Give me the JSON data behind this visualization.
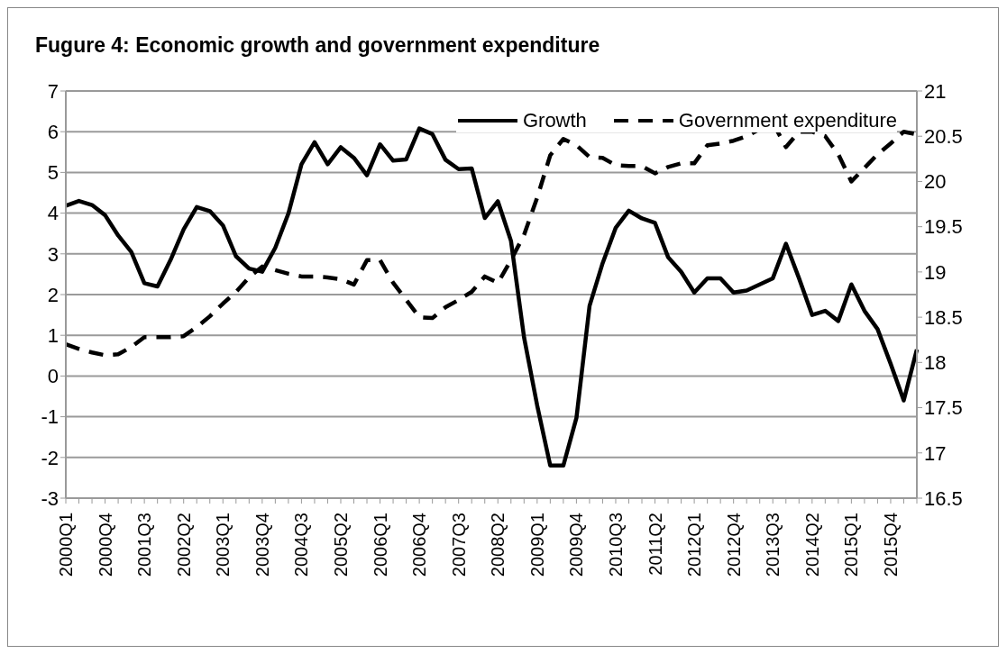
{
  "chart_data": {
    "type": "line",
    "title": "Fugure 4: Economic growth and government expenditure",
    "categories": [
      "2000Q1",
      null,
      null,
      "2000Q4",
      null,
      null,
      "2001Q3",
      null,
      null,
      "2002Q2",
      null,
      null,
      "2003Q1",
      null,
      null,
      "2003Q4",
      null,
      null,
      "2004Q3",
      null,
      null,
      "2005Q2",
      null,
      null,
      "2006Q1",
      null,
      null,
      "2006Q4",
      null,
      null,
      "2007Q3",
      null,
      null,
      "2008Q2",
      null,
      null,
      "2009Q1",
      null,
      null,
      "2009Q4",
      null,
      null,
      "2010Q3",
      null,
      null,
      "2011Q2",
      null,
      null,
      "2012Q1",
      null,
      null,
      "2012Q4",
      null,
      null,
      "2013Q3",
      null,
      null,
      "2014Q2",
      null,
      null,
      "2015Q1",
      null,
      null,
      "2015Q4",
      null,
      null
    ],
    "series": [
      {
        "name": "Growth",
        "color": "#000000",
        "line_style": "solid",
        "values": [
          4.18,
          4.3,
          4.2,
          3.95,
          3.45,
          3.05,
          2.28,
          2.2,
          2.85,
          3.6,
          4.15,
          4.05,
          3.7,
          2.94,
          2.64,
          2.56,
          3.15,
          3.99,
          5.2,
          5.74,
          5.2,
          5.62,
          5.36,
          4.93,
          5.69,
          5.29,
          5.32,
          6.08,
          5.94,
          5.31,
          5.08,
          5.1,
          3.88,
          4.29,
          3.32,
          0.95,
          -0.72,
          -2.2,
          -2.2,
          -1.03,
          1.72,
          2.77,
          3.64,
          4.06,
          3.87,
          3.76,
          2.92,
          2.56,
          2.05,
          2.4,
          2.4,
          2.05,
          2.1,
          2.25,
          2.4,
          3.25,
          2.4,
          1.5,
          1.6,
          1.35,
          2.25,
          1.6,
          1.15,
          0.3,
          -0.6,
          0.65
        ]
      },
      {
        "name": "Government expenditure",
        "color": "#000000",
        "line_style": "dashed",
        "axis": "y2",
        "values": [
          18.2,
          18.15,
          18.11,
          18.08,
          18.09,
          18.17,
          18.28,
          18.28,
          18.28,
          18.29,
          18.39,
          18.51,
          18.65,
          18.78,
          18.94,
          19.06,
          19.02,
          18.98,
          18.95,
          18.95,
          18.94,
          18.92,
          18.86,
          19.13,
          19.13,
          18.88,
          18.69,
          18.5,
          18.49,
          18.61,
          18.69,
          18.78,
          18.95,
          18.88,
          19.13,
          19.41,
          19.82,
          20.29,
          20.47,
          20.4,
          20.27,
          20.26,
          20.18,
          20.17,
          20.17,
          20.09,
          20.16,
          20.2,
          20.2,
          20.4,
          20.42,
          20.45,
          20.5,
          20.58,
          20.65,
          20.38,
          20.55,
          20.55,
          20.5,
          20.3,
          20.0,
          20.15,
          20.3,
          20.42,
          20.55,
          20.52
        ]
      }
    ],
    "ylim": [
      -3,
      7
    ],
    "yticks": [
      -3,
      -2,
      -1,
      0,
      1,
      2,
      3,
      4,
      5,
      6,
      7
    ],
    "y2lim": [
      16.5,
      21
    ],
    "y2ticks": [
      16.5,
      17,
      17.5,
      18,
      18.5,
      19,
      19.5,
      20,
      20.5,
      21
    ],
    "grid": "y",
    "legend": "top right",
    "marker": "none"
  }
}
